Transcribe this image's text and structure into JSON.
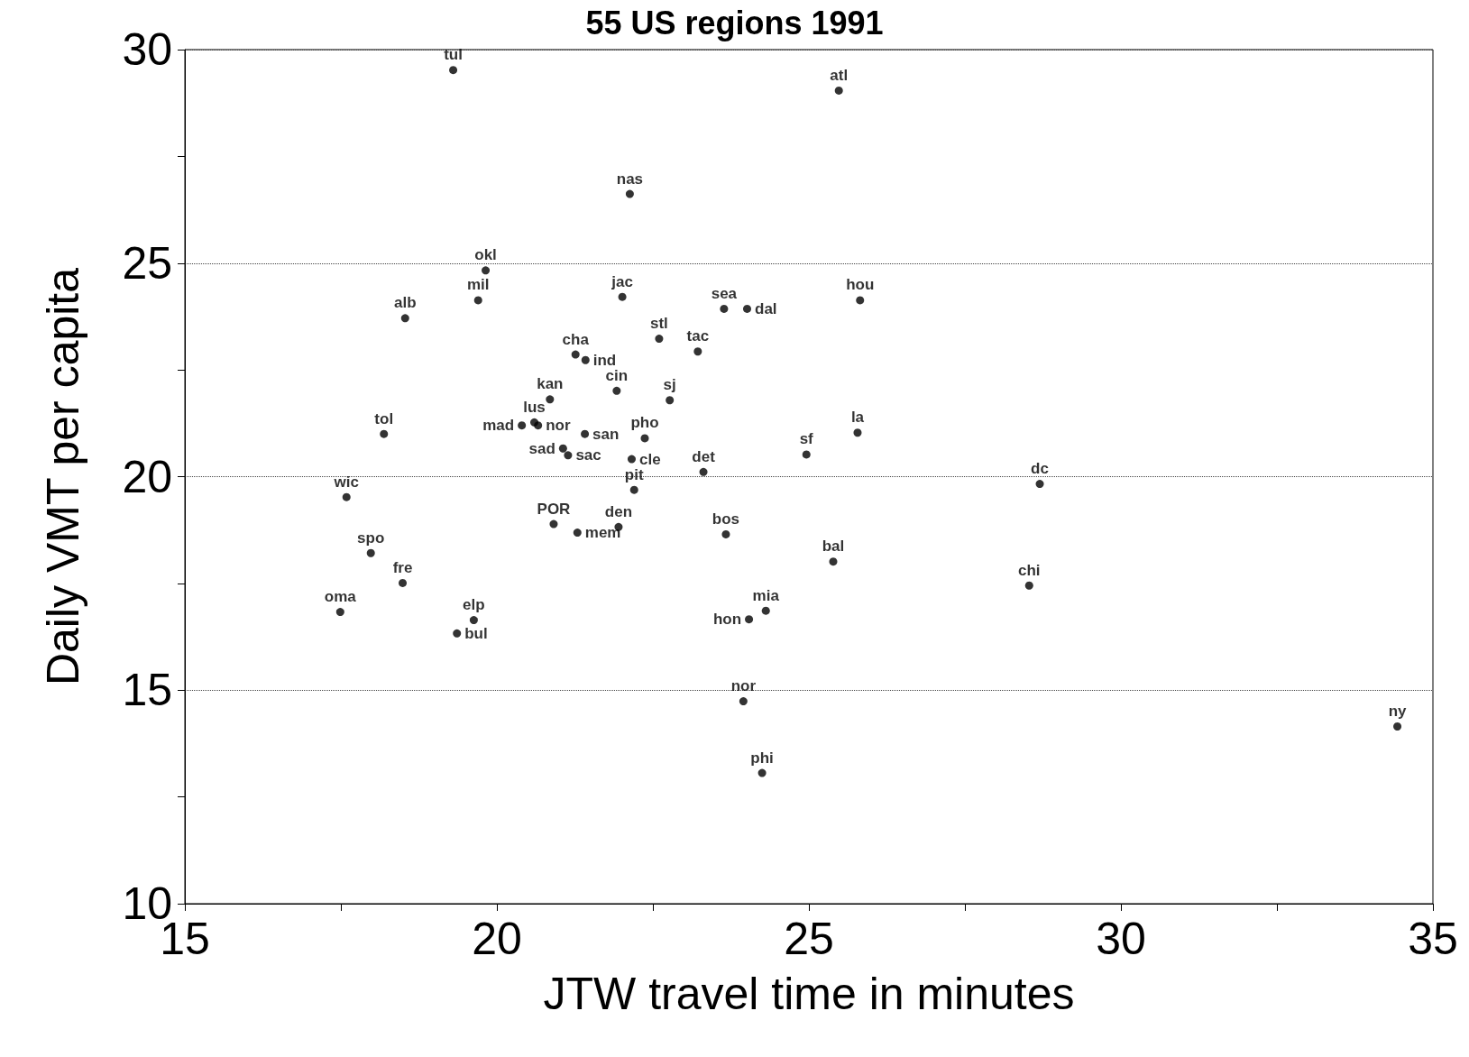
{
  "chart_data": {
    "type": "scatter",
    "title": "55 US regions 1991",
    "xlabel": "JTW travel time in minutes",
    "ylabel": "Daily VMT per capita",
    "x": [
      19.3,
      25.48,
      22.13,
      19.82,
      19.7,
      18.53,
      22.01,
      23.64,
      24.01,
      25.82,
      22.6,
      23.22,
      21.26,
      21.42,
      21.92,
      22.77,
      20.85,
      20.66,
      20.6,
      20.4,
      21.41,
      21.06,
      21.14,
      22.37,
      22.16,
      23.31,
      22.2,
      20.91,
      21.29,
      21.95,
      18.19,
      25.78,
      24.96,
      28.7,
      17.59,
      23.67,
      25.39,
      17.98,
      28.53,
      18.49,
      17.49,
      19.36,
      19.63,
      24.04,
      24.31,
      23.95,
      34.43,
      24.25
    ],
    "values": [
      29.52,
      29.04,
      26.62,
      24.83,
      24.13,
      23.71,
      24.21,
      23.93,
      23.93,
      24.13,
      23.23,
      22.93,
      22.86,
      22.73,
      22.01,
      21.79,
      21.81,
      21.2,
      21.27,
      21.2,
      21.0,
      20.66,
      20.5,
      20.9,
      20.41,
      20.11,
      19.69,
      18.89,
      18.69,
      18.82,
      21.0,
      21.03,
      20.52,
      19.83,
      19.52,
      18.65,
      18.01,
      18.21,
      17.45,
      17.51,
      16.83,
      16.33,
      16.64,
      16.66,
      16.86,
      14.74,
      14.15,
      13.06
    ],
    "value_labels": [
      "tul",
      "atl",
      "nas",
      "okl",
      "mil",
      "alb",
      "jac",
      "sea",
      "dal",
      "hou",
      "stl",
      "tac",
      "cha",
      "ind",
      "cin",
      "sj",
      "kan",
      "nor",
      "lus",
      "mad",
      "san",
      "sad",
      "sac",
      "pho",
      "cle",
      "det",
      "pit",
      "POR",
      "mem",
      "den",
      "tol",
      "la",
      "sf",
      "dc",
      "wic",
      "bos",
      "bal",
      "spo",
      "chi",
      "fre",
      "oma",
      "bul",
      "elp",
      "hon",
      "mia",
      "nor",
      "ny",
      "phi"
    ],
    "color": "#000000",
    "marker": "circle",
    "grid": "y",
    "xlim": [
      15,
      35
    ],
    "xticks": [
      15,
      {
        "value": 17.5,
        "label": null
      },
      20,
      {
        "value": 22.5,
        "label": null
      },
      25,
      {
        "value": 27.5,
        "label": null
      },
      30,
      {
        "value": 32.5,
        "label": null
      },
      35
    ],
    "ylim": [
      10,
      30
    ],
    "yticks": [
      10,
      {
        "value": 12.5,
        "label": null
      },
      15,
      {
        "value": 17.5,
        "label": null
      },
      20,
      {
        "value": 22.5,
        "label": null
      },
      25,
      {
        "value": 27.5,
        "label": null
      },
      30
    ]
  }
}
